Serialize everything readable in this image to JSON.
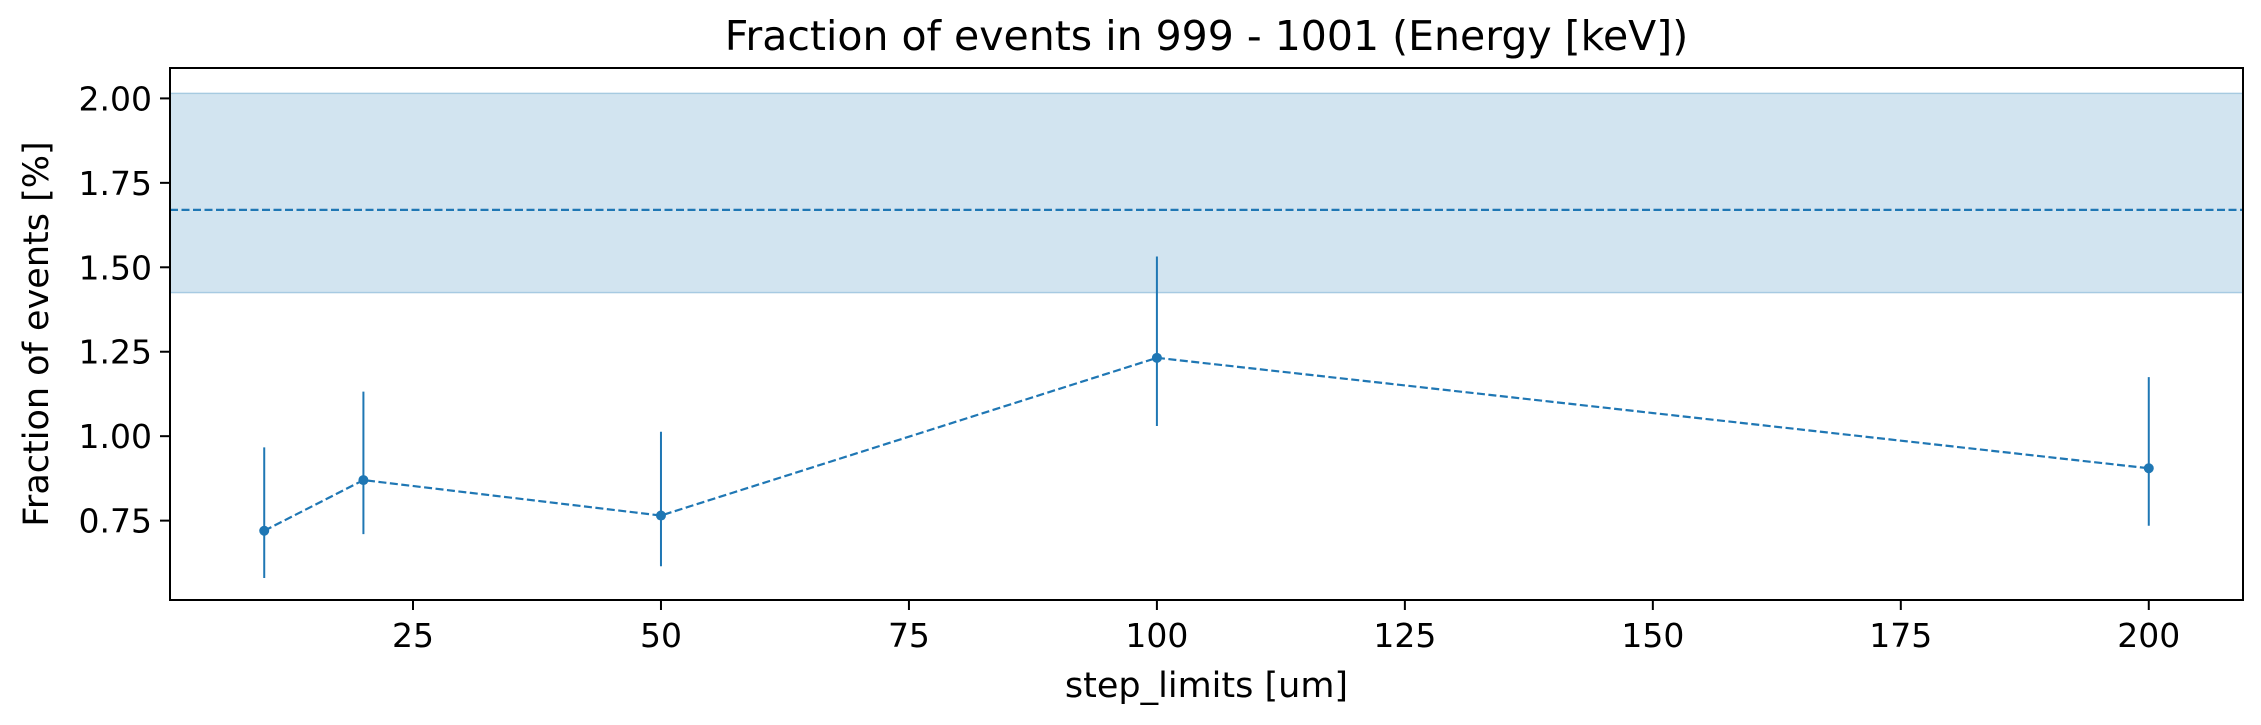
{
  "chart_data": {
    "type": "line",
    "title": "Fraction of events in 999 - 1001 (Energy [keV])",
    "xlabel": "step_limits [um]",
    "ylabel": "Fraction of events [%]",
    "xlim": [
      0.5,
      209.5
    ],
    "ylim": [
      0.515,
      2.09
    ],
    "xticks": [
      25,
      50,
      75,
      100,
      125,
      150,
      175,
      200
    ],
    "xtick_labels": [
      "25",
      "50",
      "75",
      "100",
      "125",
      "150",
      "175",
      "200"
    ],
    "yticks": [
      0.75,
      1.0,
      1.25,
      1.5,
      1.75,
      2.0
    ],
    "ytick_labels": [
      "0.75",
      "1.00",
      "1.25",
      "1.50",
      "1.75",
      "2.00"
    ],
    "series": [
      {
        "x": [
          10,
          20,
          50,
          100,
          200
        ],
        "y": [
          0.72,
          0.87,
          0.765,
          1.232,
          0.905
        ],
        "yerr_low": [
          0.58,
          0.71,
          0.615,
          1.03,
          0.735
        ],
        "yerr_high": [
          0.967,
          1.132,
          1.013,
          1.532,
          1.175
        ],
        "color": "#1f77b4",
        "linestyle": "dashed",
        "marker": "circle"
      }
    ],
    "reference": {
      "value": 1.67,
      "band": [
        1.425,
        2.015
      ],
      "color": "#1f77b4",
      "linestyle": "dashed"
    },
    "grid": false,
    "legend": "none"
  }
}
